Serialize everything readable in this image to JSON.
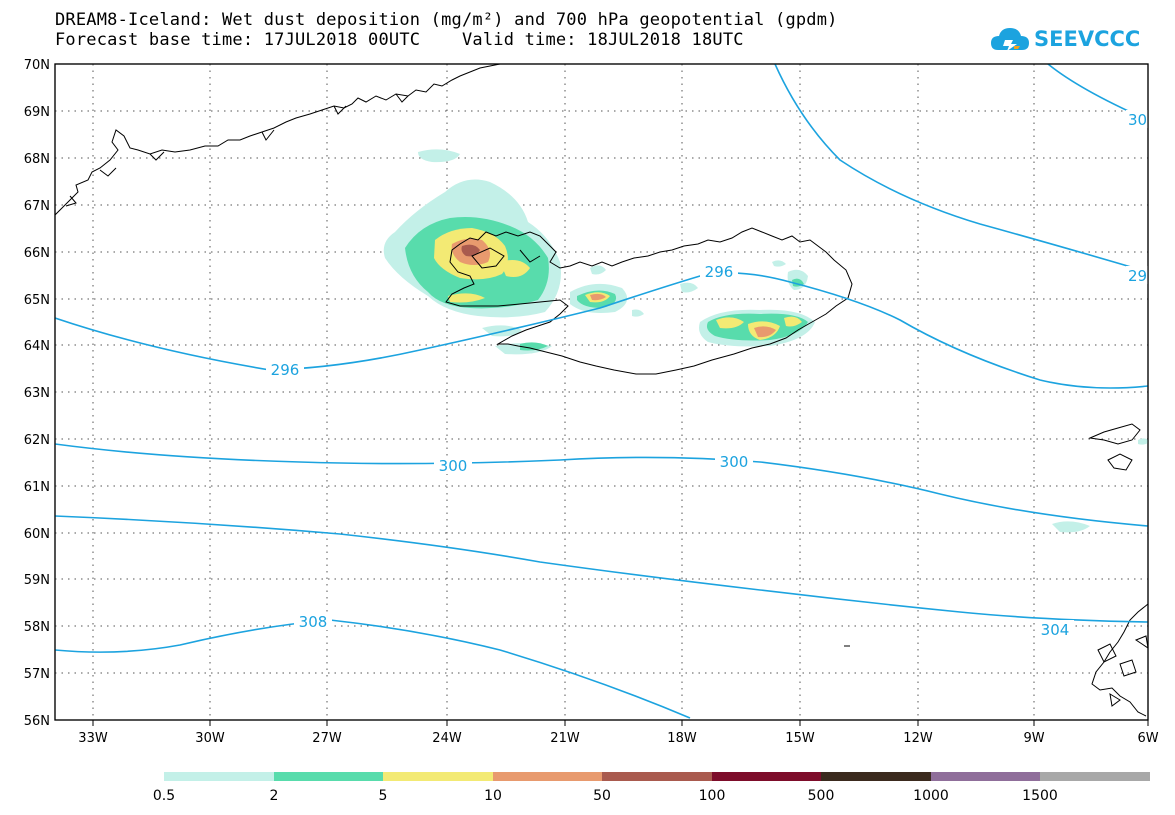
{
  "title_line1": "DREAM8-Iceland: Wet dust deposition (mg/m²) and 700 hPa geopotential (gpdm)",
  "title_line2": "Forecast base time: 17JUL2018 00UTC    Valid time: 18JUL2018 18UTC",
  "logo_text": "SEEVCCC",
  "lat_labels": [
    "70N",
    "69N",
    "68N",
    "67N",
    "66N",
    "65N",
    "64N",
    "63N",
    "62N",
    "61N",
    "60N",
    "59N",
    "58N",
    "57N",
    "56N"
  ],
  "lon_labels": [
    "33W",
    "30W",
    "27W",
    "24W",
    "21W",
    "18W",
    "15W",
    "12W",
    "9W",
    "6W"
  ],
  "contour_labels": [
    "296",
    "296",
    "300",
    "300",
    "308",
    "304",
    "30",
    "29"
  ],
  "colorbar_labels": [
    "0.5",
    "2",
    "5",
    "10",
    "50",
    "100",
    "500",
    "1000",
    "1500"
  ],
  "colorbar_colors": [
    "#c3f0e8",
    "#58dcac",
    "#f3ea74",
    "#e89a6e",
    "#a95a4e",
    "#7d0c2a",
    "#3b2a1e",
    "#8f6e9a",
    "#a8a8a8"
  ],
  "colors": {
    "contour": "#1ca3df",
    "logo": "#1ca3df",
    "grid": "#555555",
    "coast": "#000000"
  }
}
